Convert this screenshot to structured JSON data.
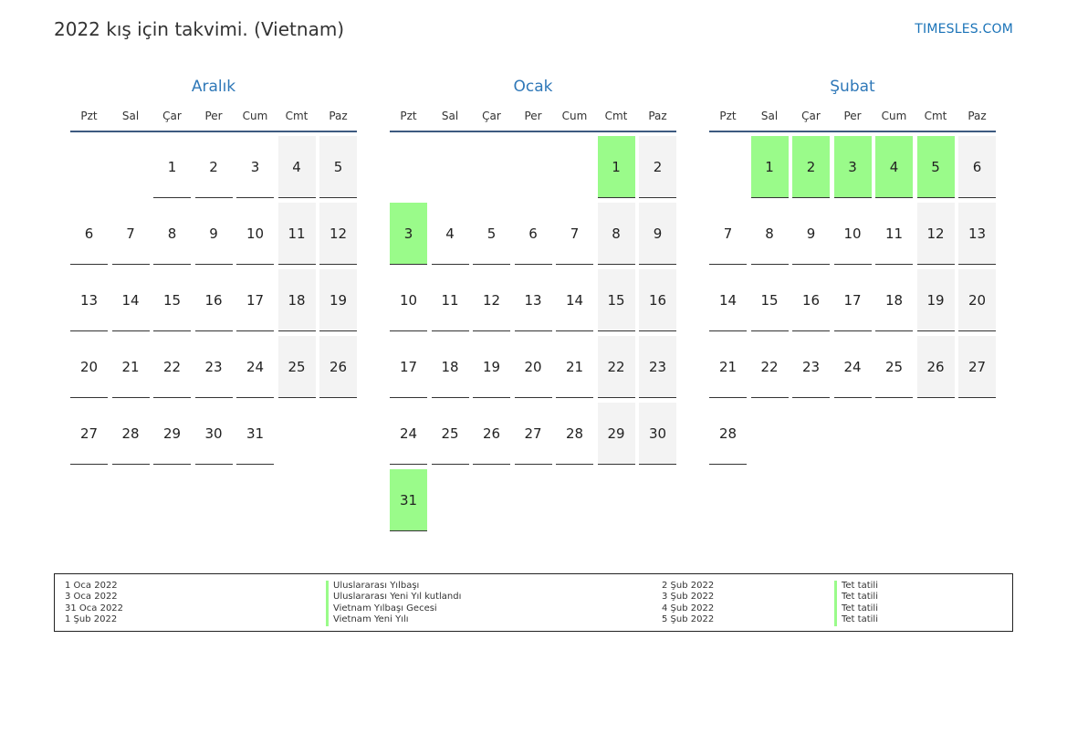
{
  "header": {
    "title": "2022 kış için takvimi. (Vietnam)",
    "brand": "TIMESLES.COM"
  },
  "weekdays": [
    "Pzt",
    "Sal",
    "Çar",
    "Per",
    "Cum",
    "Cmt",
    "Paz"
  ],
  "months": [
    {
      "name": "Aralık",
      "start_offset": 2,
      "days": 31,
      "holidays": []
    },
    {
      "name": "Ocak",
      "start_offset": 5,
      "days": 31,
      "holidays": [
        1,
        3,
        31
      ]
    },
    {
      "name": "Şubat",
      "start_offset": 1,
      "days": 28,
      "holidays": [
        1,
        2,
        3,
        4,
        5
      ]
    }
  ],
  "legend": {
    "left_dates": [
      "1 Oca 2022",
      "3 Oca 2022",
      "31 Oca 2022",
      "1 Şub 2022"
    ],
    "left_names": [
      "Uluslararası Yılbaşı",
      "Uluslararası Yeni Yıl kutlandı",
      "Vietnam Yılbaşı Gecesi",
      "Vietnam Yeni Yılı"
    ],
    "right_dates": [
      "2 Şub 2022",
      "3 Şub 2022",
      "4 Şub 2022",
      "5 Şub 2022"
    ],
    "right_names": [
      "Tet tatili",
      "Tet tatili",
      "Tet tatili",
      "Tet tatili"
    ]
  },
  "colors": {
    "holiday": "#9afb8a",
    "weekend": "#f3f3f3",
    "month_title": "#2f78b8",
    "rule": "#3d5a80"
  }
}
